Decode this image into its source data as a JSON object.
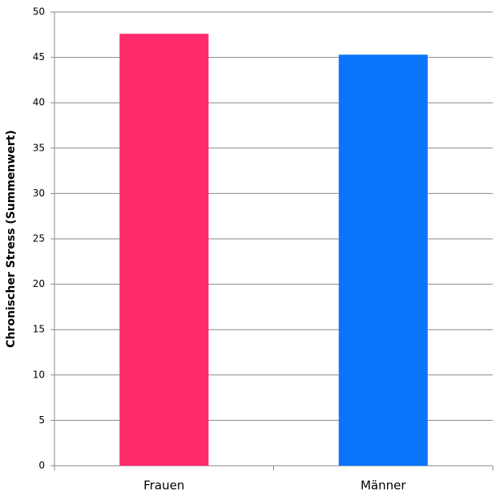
{
  "chart_data": {
    "type": "bar",
    "y_label": "Chronischer Stress (Summenwert)",
    "categories": [
      "Frauen",
      "Männer"
    ],
    "values": [
      47.6,
      45.3
    ],
    "colors": [
      "#ff2a6a",
      "#0a74fa"
    ],
    "ylim": [
      0,
      50
    ],
    "yticks": [
      0,
      5,
      10,
      15,
      20,
      25,
      30,
      35,
      40,
      45,
      50
    ],
    "grid": true
  }
}
